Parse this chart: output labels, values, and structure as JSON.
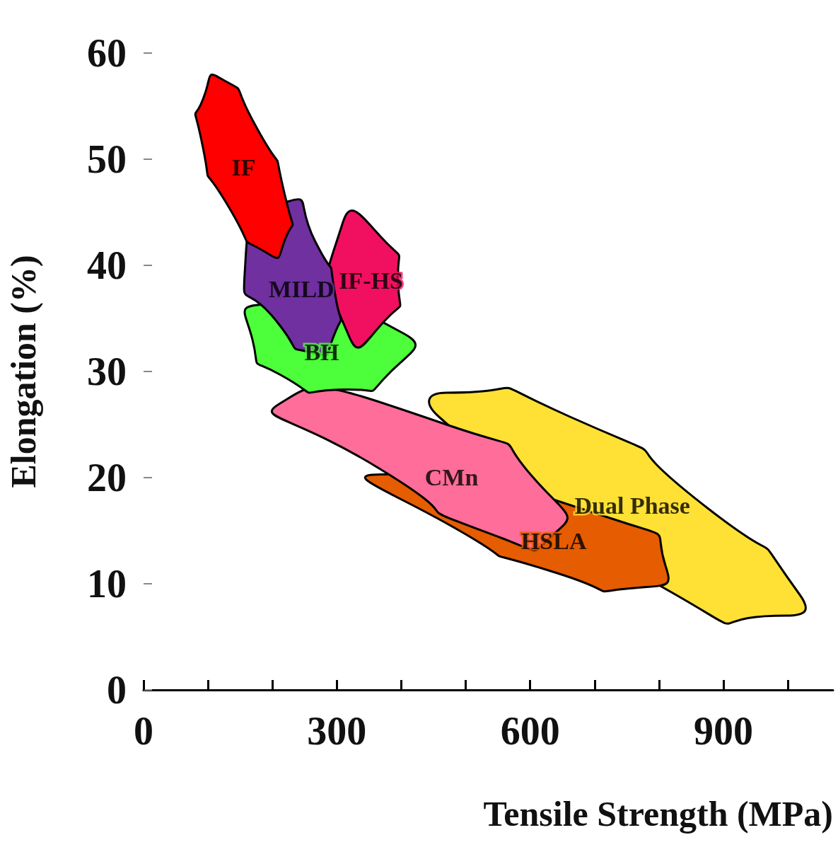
{
  "chart_data": {
    "type": "area",
    "xlabel": "Tensile Strength (MPa)",
    "ylabel": "Elongation (%)",
    "xlim": [
      0,
      1070
    ],
    "xticks": [
      0,
      {
        "value": 100,
        "label": null
      },
      {
        "value": 200,
        "label": null
      },
      300,
      {
        "value": 400,
        "label": null
      },
      {
        "value": 500,
        "label": null
      },
      600,
      {
        "value": 700,
        "label": null
      },
      {
        "value": 800,
        "label": null
      },
      900,
      {
        "value": 1000,
        "label": null
      }
    ],
    "ylim": [
      0,
      60
    ],
    "yticks": [
      0,
      10,
      20,
      30,
      40,
      50,
      60
    ],
    "grid": false,
    "legend": false,
    "series": [
      {
        "name": "Dual Phase",
        "color": "#ffe135",
        "x": [
          470,
          663,
          878,
          1018,
          997,
          825,
          459
        ],
        "values": [
          28,
          25.7,
          17,
          9,
          7,
          9,
          25.7
        ]
      },
      {
        "name": "HSLA",
        "color": "#e65c00",
        "x": [
          749,
          810,
          781,
          642,
          470,
          368
        ],
        "values": [
          15.7,
          11.7,
          9.7,
          11,
          15.7,
          20.3
        ]
      },
      {
        "name": "CMn",
        "color": "#ff6d9a",
        "x": [
          470,
          631,
          637,
          556,
          362,
          212
        ],
        "values": [
          25,
          18.3,
          14.7,
          14.3,
          21,
          27
        ]
      },
      {
        "name": "BH",
        "color": "#4cff3a",
        "x": [
          400,
          384,
          309,
          212,
          169,
          185
        ],
        "values": [
          33.7,
          30,
          28.3,
          29.7,
          33,
          36.3
        ]
      },
      {
        "name": "IF-HS",
        "color": "#f0105f",
        "x": [
          309,
          368,
          395,
          373,
          319
        ],
        "values": [
          44,
          42.7,
          38.3,
          34.7,
          33.3
        ]
      },
      {
        "name": "MILD",
        "color": "#7030a0",
        "x": [
          223,
          266,
          298,
          293,
          266,
          212,
          158
        ],
        "values": [
          46,
          42.3,
          37,
          33,
          31.7,
          34.3,
          40.3
        ]
      },
      {
        "name": "IF",
        "color": "#ff0000",
        "x": [
          117,
          169,
          223,
          217,
          196,
          137,
          88,
          96
        ],
        "values": [
          57.7,
          53.7,
          45.7,
          42,
          41,
          45,
          52.3,
          56.3
        ]
      }
    ]
  }
}
